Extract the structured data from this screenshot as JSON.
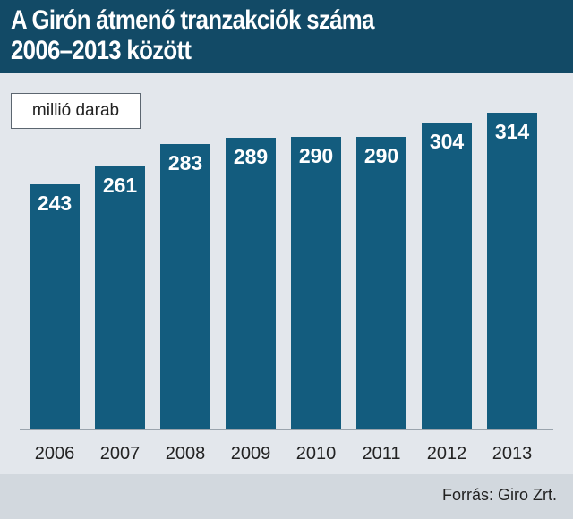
{
  "header": {
    "title_line1": "A Girón átmenő tranzakciók száma",
    "title_line2": "2006–2013 között"
  },
  "unit_label": "millió darab",
  "footer": {
    "source": "Forrás: Giro Zrt."
  },
  "colors": {
    "header_bg": "#124a66",
    "bar": "#135c7e",
    "background": "#e3e7ec",
    "footer_bg": "#d2d8de"
  },
  "chart_data": {
    "type": "bar",
    "title": "A Girón átmenő tranzakciók száma 2006–2013 között",
    "xlabel": "",
    "ylabel": "millió darab",
    "categories": [
      "2006",
      "2007",
      "2008",
      "2009",
      "2010",
      "2011",
      "2012",
      "2013"
    ],
    "values": [
      243,
      261,
      283,
      289,
      290,
      290,
      304,
      314
    ],
    "data_labels": [
      "243",
      "261",
      "283",
      "289",
      "290",
      "290",
      "304",
      "314"
    ],
    "grid": false,
    "legend": "none"
  }
}
